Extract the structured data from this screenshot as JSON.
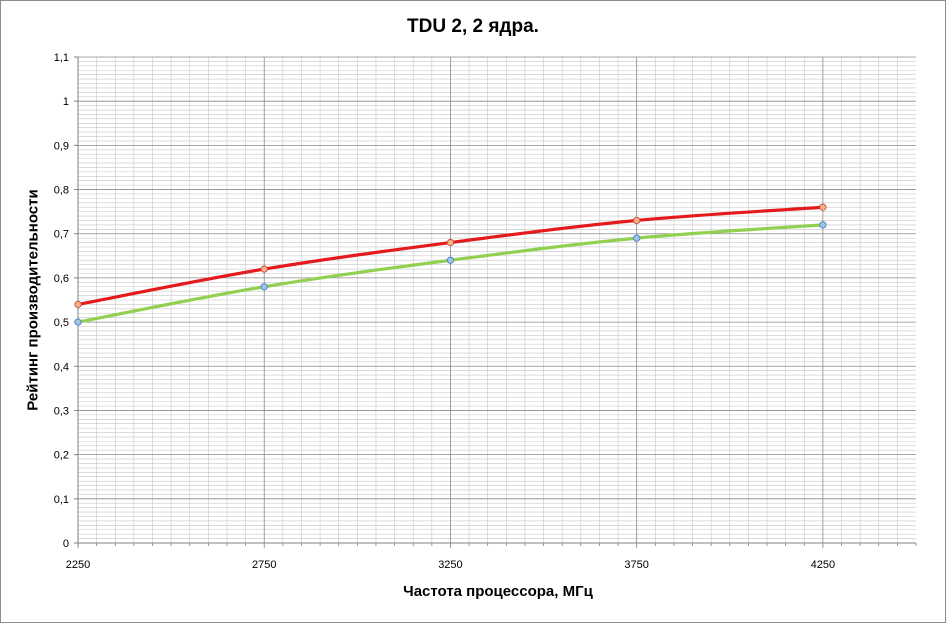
{
  "chart_data": {
    "type": "line",
    "title": "TDU 2, 2 ядра.",
    "xlabel": "Частота процессора, МГц",
    "ylabel": "Рейтинг производительности",
    "x": [
      2250,
      2750,
      3250,
      3750,
      4250
    ],
    "x_tick_labels": [
      "2250",
      "2750",
      "3250",
      "3750",
      "4250"
    ],
    "xlim": [
      2250,
      4500
    ],
    "ylim": [
      0,
      1.1
    ],
    "y_tick_labels": [
      "0",
      "0,1",
      "0,2",
      "0,3",
      "0,4",
      "0,5",
      "0,6",
      "0,7",
      "0,8",
      "0,9",
      "1",
      "1,1"
    ],
    "grid": true,
    "legend": "none",
    "series": [
      {
        "values": [
          0.54,
          0.62,
          0.68,
          0.73,
          0.76
        ],
        "color": "#e41a1c"
      },
      {
        "values": [
          0.5,
          0.58,
          0.64,
          0.69,
          0.72
        ],
        "color": "#92d050"
      }
    ]
  }
}
